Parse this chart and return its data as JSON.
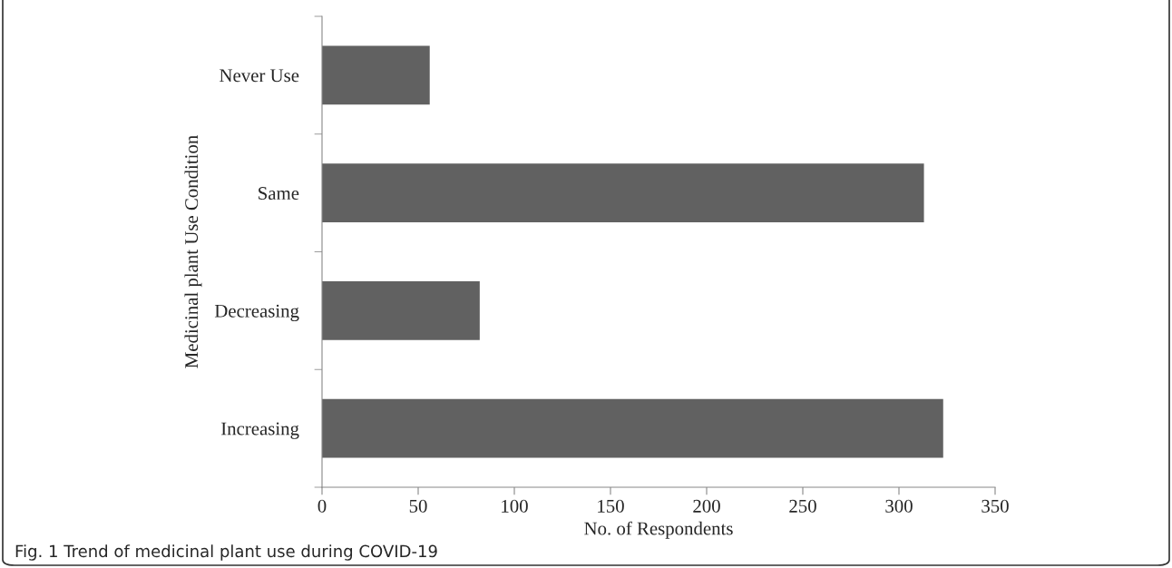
{
  "chart_data": {
    "type": "bar",
    "orientation": "horizontal",
    "categories": [
      "Never Use",
      "Same",
      "Decreasing",
      "Increasing"
    ],
    "values": [
      56,
      313,
      82,
      323
    ],
    "color": "#616161",
    "xlim": [
      0,
      350
    ],
    "xticks": [
      0,
      50,
      100,
      150,
      200,
      250,
      300,
      350
    ],
    "xlabel": "No. of Respondents",
    "ylabel": "Medicinal plant Use Condition",
    "grid": false,
    "legend": false,
    "annotations": [
      "Fig. 1 Trend of medicinal plant use during COVID-19"
    ]
  }
}
